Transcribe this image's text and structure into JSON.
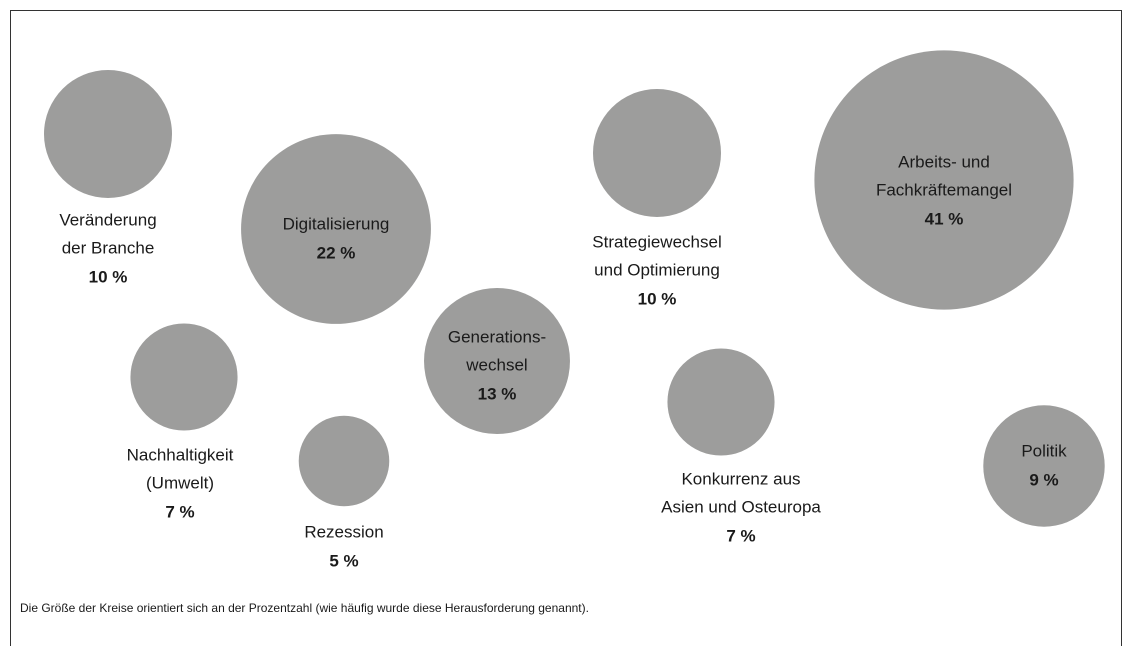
{
  "chart_data": {
    "type": "bubble",
    "categories": [
      [
        "Veränderung",
        "der Branche"
      ],
      [
        "Digitalisierung"
      ],
      [
        "Nachhaltigkeit",
        "(Umwelt)"
      ],
      [
        "Rezession"
      ],
      [
        "Generations-",
        "wechsel"
      ],
      [
        "Strategiewechsel",
        "und Optimierung"
      ],
      [
        "Konkurrenz aus",
        "Asien und Osteuropa"
      ],
      [
        "Arbeits- und",
        "Fachkräftemangel"
      ],
      [
        "Politik"
      ]
    ],
    "values": [
      10,
      22,
      7,
      5,
      13,
      10,
      7,
      41,
      9
    ],
    "value_labels": [
      "10 %",
      "22 %",
      "7 %",
      "5 %",
      "13 %",
      "10 %",
      "7 %",
      "41 %",
      "9 %"
    ],
    "color": "#9d9d9c",
    "note": "Die Größe der Kreise orientiert sich an der Prozentzahl (wie häufig wurde diese Herausforderung genannt)."
  }
}
